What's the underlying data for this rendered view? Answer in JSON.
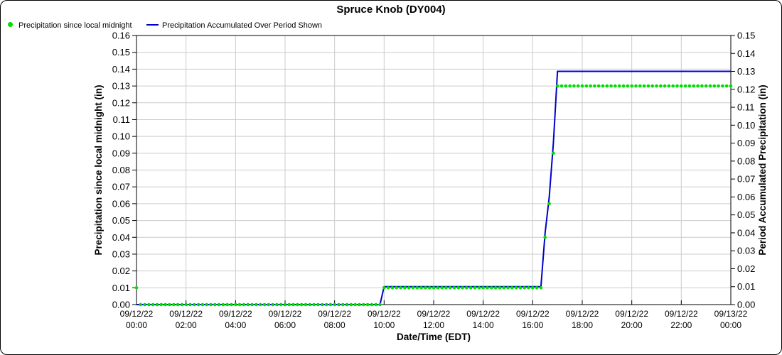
{
  "title": "Spruce Knob (DY004)",
  "legend": [
    {
      "label": "Precipitation since local midnight",
      "marker": "dot",
      "color": "#00DD00"
    },
    {
      "label": "Precipitation Accumulated Over Period Shown",
      "marker": "line",
      "color": "#0000CC"
    }
  ],
  "chart_data": {
    "type": "line",
    "title": "Spruce Knob (DY004)",
    "xlabel": "Date/Time (EDT)",
    "ylabel_left": "Precipitation since local midnight (in)",
    "ylabel_right": "Period Accumulated Precipitation (in)",
    "x_range_hours": [
      0,
      24
    ],
    "ylim_left": [
      0,
      0.16
    ],
    "ylim_right": [
      0,
      0.15
    ],
    "grid": true,
    "grid_color": "#CCCCCC",
    "x_ticks": [
      {
        "date": "09/12/22",
        "time": "00:00"
      },
      {
        "date": "09/12/22",
        "time": "02:00"
      },
      {
        "date": "09/12/22",
        "time": "04:00"
      },
      {
        "date": "09/12/22",
        "time": "06:00"
      },
      {
        "date": "09/12/22",
        "time": "08:00"
      },
      {
        "date": "09/12/22",
        "time": "10:00"
      },
      {
        "date": "09/12/22",
        "time": "12:00"
      },
      {
        "date": "09/12/22",
        "time": "14:00"
      },
      {
        "date": "09/12/22",
        "time": "16:00"
      },
      {
        "date": "09/12/22",
        "time": "18:00"
      },
      {
        "date": "09/12/22",
        "time": "20:00"
      },
      {
        "date": "09/12/22",
        "time": "22:00"
      },
      {
        "date": "09/13/22",
        "time": "00:00"
      }
    ],
    "left_ticks": [
      "0.00",
      "0.01",
      "0.02",
      "0.03",
      "0.04",
      "0.05",
      "0.06",
      "0.07",
      "0.08",
      "0.09",
      "0.10",
      "0.11",
      "0.12",
      "0.13",
      "0.14",
      "0.15",
      "0.16"
    ],
    "right_ticks": [
      "0.00",
      "0.01",
      "0.02",
      "0.03",
      "0.04",
      "0.05",
      "0.06",
      "0.07",
      "0.08",
      "0.09",
      "0.10",
      "0.11",
      "0.12",
      "0.13",
      "0.14",
      "0.15"
    ],
    "series": [
      {
        "name": "Precipitation since local midnight",
        "axis": "left",
        "style": "dots",
        "color": "#00DD00",
        "interpolation": "step-hold",
        "sample_interval_min": 10,
        "breakpoints": [
          [
            "00:00",
            0.01
          ],
          [
            "00:10",
            0.0
          ],
          [
            "10:00",
            0.01
          ],
          [
            "16:30",
            0.04
          ],
          [
            "16:40",
            0.06
          ],
          [
            "16:50",
            0.09
          ],
          [
            "17:00",
            0.13
          ],
          [
            "24:00",
            0.13
          ]
        ]
      },
      {
        "name": "Precipitation Accumulated Over Period Shown",
        "axis": "right",
        "style": "line",
        "color": "#0000CC",
        "interpolation": "linear",
        "breakpoints": [
          [
            "00:00",
            0.0
          ],
          [
            "09:50",
            0.0
          ],
          [
            "10:00",
            0.01
          ],
          [
            "16:20",
            0.01
          ],
          [
            "16:30",
            0.04
          ],
          [
            "16:40",
            0.06
          ],
          [
            "16:50",
            0.09
          ],
          [
            "17:00",
            0.13
          ],
          [
            "24:00",
            0.13
          ]
        ]
      }
    ]
  }
}
